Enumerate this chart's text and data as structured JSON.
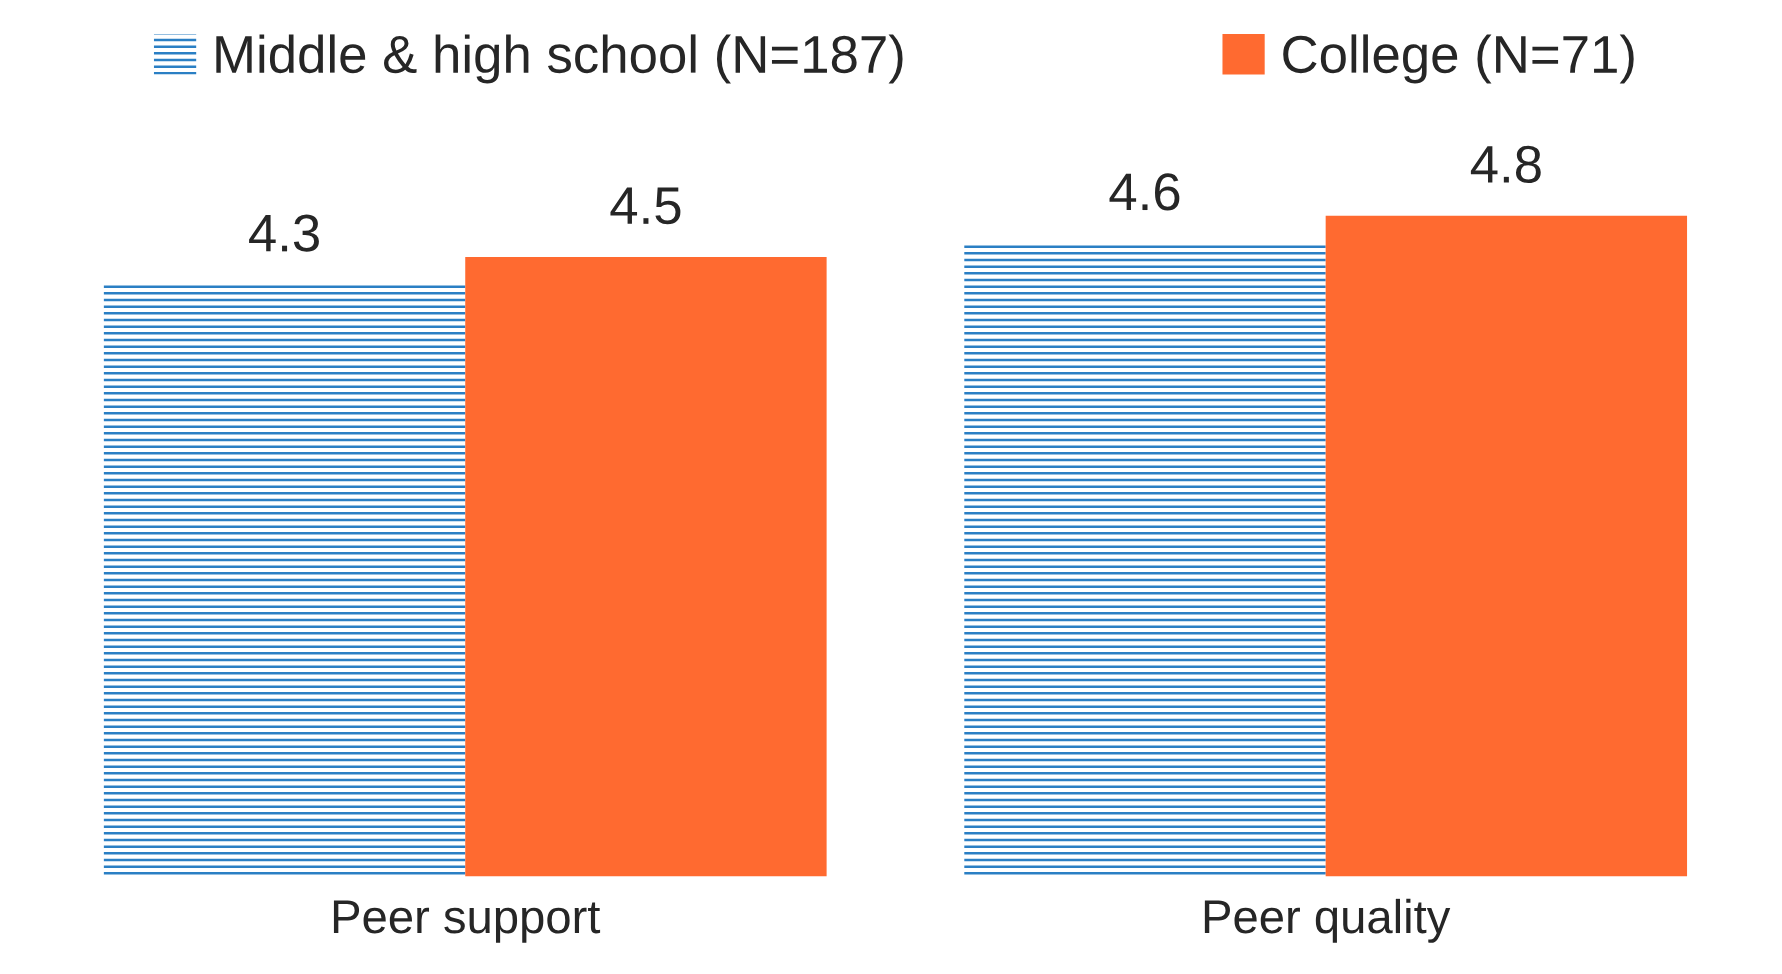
{
  "chart_data": {
    "type": "bar",
    "categories": [
      "Peer support",
      "Peer quality"
    ],
    "series": [
      {
        "name": "Middle & high school (N=187)",
        "color": "#2a7fc4",
        "values": [
          4.3,
          4.6
        ]
      },
      {
        "name": "College (N=71)",
        "color": "#ff6a30",
        "values": [
          4.5,
          4.8
        ]
      }
    ],
    "data_labels": true,
    "legend": "top",
    "grid": false
  }
}
